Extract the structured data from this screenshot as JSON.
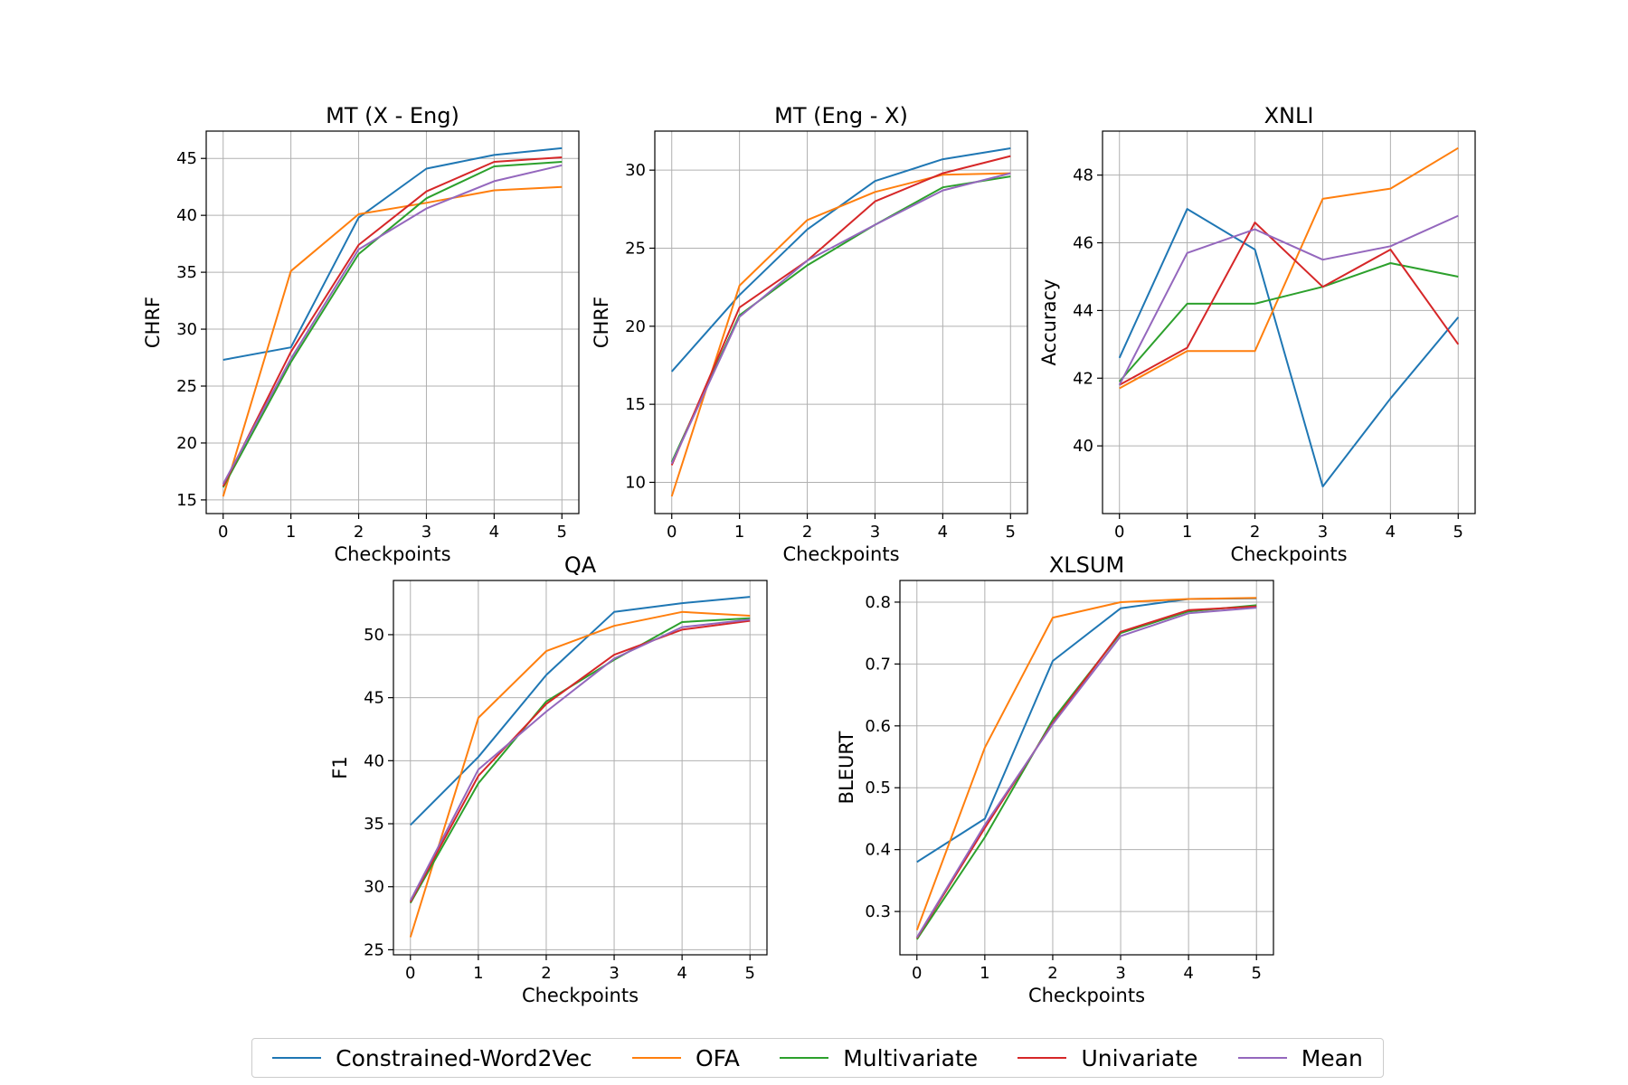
{
  "legend": [
    {
      "name": "Constrained-Word2Vec",
      "color": "#1f77b4"
    },
    {
      "name": "OFA",
      "color": "#ff7f0e"
    },
    {
      "name": "Multivariate",
      "color": "#2ca02c"
    },
    {
      "name": "Univariate",
      "color": "#d62728"
    },
    {
      "name": "Mean",
      "color": "#9467bd"
    }
  ],
  "chart_data": [
    {
      "type": "line",
      "title": "MT (X - Eng)",
      "xlabel": "Checkpoints",
      "ylabel": "CHRF",
      "x": [
        0,
        1,
        2,
        3,
        4,
        5
      ],
      "xlim": [
        -0.25,
        5.25
      ],
      "ylim": [
        13.8,
        47.4
      ],
      "yticks": [
        15,
        20,
        25,
        30,
        35,
        40,
        45
      ],
      "grid": true,
      "series": [
        {
          "name": "Constrained-Word2Vec",
          "values": [
            27.3,
            28.4,
            39.8,
            44.1,
            45.3,
            45.9
          ]
        },
        {
          "name": "OFA",
          "values": [
            15.3,
            35.1,
            40.1,
            41.1,
            42.2,
            42.5
          ]
        },
        {
          "name": "Multivariate",
          "values": [
            16.1,
            27.1,
            36.6,
            41.5,
            44.3,
            44.7
          ]
        },
        {
          "name": "Univariate",
          "values": [
            16.2,
            28.0,
            37.4,
            42.1,
            44.7,
            45.1
          ]
        },
        {
          "name": "Mean",
          "values": [
            16.4,
            27.4,
            37.0,
            40.6,
            43.0,
            44.4
          ]
        }
      ]
    },
    {
      "type": "line",
      "title": "MT (Eng - X)",
      "xlabel": "Checkpoints",
      "ylabel": "CHRF",
      "x": [
        0,
        1,
        2,
        3,
        4,
        5
      ],
      "xlim": [
        -0.25,
        5.25
      ],
      "ylim": [
        8.0,
        32.5
      ],
      "yticks": [
        10,
        15,
        20,
        25,
        30
      ],
      "grid": true,
      "series": [
        {
          "name": "Constrained-Word2Vec",
          "values": [
            17.1,
            22.0,
            26.2,
            29.3,
            30.7,
            31.4
          ]
        },
        {
          "name": "OFA",
          "values": [
            9.1,
            22.6,
            26.8,
            28.6,
            29.7,
            29.8
          ]
        },
        {
          "name": "Multivariate",
          "values": [
            11.3,
            20.7,
            23.9,
            26.5,
            28.9,
            29.6
          ]
        },
        {
          "name": "Univariate",
          "values": [
            11.1,
            21.2,
            24.2,
            28.0,
            29.8,
            30.9
          ]
        },
        {
          "name": "Mean",
          "values": [
            11.2,
            20.6,
            24.2,
            26.5,
            28.7,
            29.8
          ]
        }
      ]
    },
    {
      "type": "line",
      "title": "XNLI",
      "xlabel": "Checkpoints",
      "ylabel": "Accuracy",
      "x": [
        0,
        1,
        2,
        3,
        4,
        5
      ],
      "xlim": [
        -0.25,
        5.25
      ],
      "ylim": [
        38.0,
        49.3
      ],
      "yticks": [
        40,
        42,
        44,
        46,
        48
      ],
      "grid": true,
      "series": [
        {
          "name": "Constrained-Word2Vec",
          "values": [
            42.6,
            47.0,
            45.8,
            38.8,
            41.4,
            43.8
          ]
        },
        {
          "name": "OFA",
          "values": [
            41.7,
            42.8,
            42.8,
            47.3,
            47.6,
            48.8
          ]
        },
        {
          "name": "Multivariate",
          "values": [
            41.9,
            44.2,
            44.2,
            44.7,
            45.4,
            45.0
          ]
        },
        {
          "name": "Univariate",
          "values": [
            41.8,
            42.9,
            46.6,
            44.7,
            45.8,
            43.0
          ]
        },
        {
          "name": "Mean",
          "values": [
            41.8,
            45.7,
            46.4,
            45.5,
            45.9,
            46.8
          ]
        }
      ]
    },
    {
      "type": "line",
      "title": "QA",
      "xlabel": "Checkpoints",
      "ylabel": "F1",
      "x": [
        0,
        1,
        2,
        3,
        4,
        5
      ],
      "xlim": [
        -0.25,
        5.25
      ],
      "ylim": [
        24.6,
        54.3
      ],
      "yticks": [
        25,
        30,
        35,
        40,
        45,
        50
      ],
      "grid": true,
      "series": [
        {
          "name": "Constrained-Word2Vec",
          "values": [
            34.9,
            40.3,
            46.8,
            51.8,
            52.5,
            53.0
          ]
        },
        {
          "name": "OFA",
          "values": [
            26.0,
            43.4,
            48.7,
            50.7,
            51.8,
            51.5
          ]
        },
        {
          "name": "Multivariate",
          "values": [
            28.7,
            38.2,
            44.7,
            48.0,
            51.0,
            51.3
          ]
        },
        {
          "name": "Univariate",
          "values": [
            28.8,
            38.8,
            44.5,
            48.4,
            50.4,
            51.1
          ]
        },
        {
          "name": "Mean",
          "values": [
            28.9,
            39.3,
            43.9,
            48.1,
            50.6,
            51.2
          ]
        }
      ]
    },
    {
      "type": "line",
      "title": "XLSUM",
      "xlabel": "Checkpoints",
      "ylabel": "BLEURT",
      "x": [
        0,
        1,
        2,
        3,
        4,
        5
      ],
      "xlim": [
        -0.25,
        5.25
      ],
      "ylim": [
        0.23,
        0.835
      ],
      "yticks": [
        0.3,
        0.4,
        0.5,
        0.6,
        0.7,
        0.8
      ],
      "grid": true,
      "series": [
        {
          "name": "Constrained-Word2Vec",
          "values": [
            0.38,
            0.45,
            0.705,
            0.79,
            0.805,
            0.806
          ]
        },
        {
          "name": "OFA",
          "values": [
            0.27,
            0.565,
            0.775,
            0.8,
            0.805,
            0.807
          ]
        },
        {
          "name": "Multivariate",
          "values": [
            0.255,
            0.42,
            0.61,
            0.75,
            0.785,
            0.795
          ]
        },
        {
          "name": "Univariate",
          "values": [
            0.257,
            0.435,
            0.605,
            0.752,
            0.787,
            0.793
          ]
        },
        {
          "name": "Mean",
          "values": [
            0.258,
            0.44,
            0.603,
            0.745,
            0.782,
            0.791
          ]
        }
      ]
    }
  ]
}
